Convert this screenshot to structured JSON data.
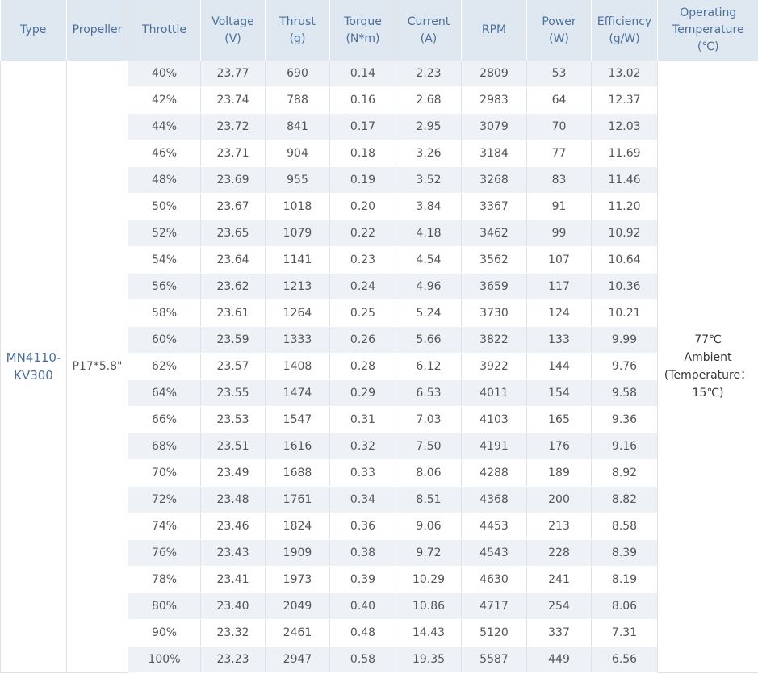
{
  "header": {
    "type": "Type",
    "propeller": "Propeller",
    "throttle": "Throttle",
    "voltage": {
      "name": "Voltage",
      "unit": "(V)"
    },
    "thrust": {
      "name": "Thrust",
      "unit": "(g)"
    },
    "torque": {
      "name": "Torque",
      "unit": "(N*m)"
    },
    "current": {
      "name": "Current",
      "unit": "(A)"
    },
    "rpm": "RPM",
    "power": {
      "name": "Power",
      "unit": "(W)"
    },
    "efficiency": {
      "name": "Efficiency",
      "unit": "(g/W)"
    },
    "temperature": {
      "line1": "Operating",
      "line2": "Temperature",
      "line3": "(℃)"
    }
  },
  "type": {
    "line1": "MN4110-",
    "line2": "KV300"
  },
  "propeller": "P17*5.8\"",
  "temperature_note": {
    "line1": "77℃",
    "line2": "Ambient",
    "line3": "(Temperature：",
    "line4": "15℃)"
  },
  "rows": [
    {
      "throttle": "40%",
      "voltage": "23.77",
      "thrust": "690",
      "torque": "0.14",
      "current": "2.23",
      "rpm": "2809",
      "power": "53",
      "efficiency": "13.02"
    },
    {
      "throttle": "42%",
      "voltage": "23.74",
      "thrust": "788",
      "torque": "0.16",
      "current": "2.68",
      "rpm": "2983",
      "power": "64",
      "efficiency": "12.37"
    },
    {
      "throttle": "44%",
      "voltage": "23.72",
      "thrust": "841",
      "torque": "0.17",
      "current": "2.95",
      "rpm": "3079",
      "power": "70",
      "efficiency": "12.03"
    },
    {
      "throttle": "46%",
      "voltage": "23.71",
      "thrust": "904",
      "torque": "0.18",
      "current": "3.26",
      "rpm": "3184",
      "power": "77",
      "efficiency": "11.69"
    },
    {
      "throttle": "48%",
      "voltage": "23.69",
      "thrust": "955",
      "torque": "0.19",
      "current": "3.52",
      "rpm": "3268",
      "power": "83",
      "efficiency": "11.46"
    },
    {
      "throttle": "50%",
      "voltage": "23.67",
      "thrust": "1018",
      "torque": "0.20",
      "current": "3.84",
      "rpm": "3367",
      "power": "91",
      "efficiency": "11.20"
    },
    {
      "throttle": "52%",
      "voltage": "23.65",
      "thrust": "1079",
      "torque": "0.22",
      "current": "4.18",
      "rpm": "3462",
      "power": "99",
      "efficiency": "10.92"
    },
    {
      "throttle": "54%",
      "voltage": "23.64",
      "thrust": "1141",
      "torque": "0.23",
      "current": "4.54",
      "rpm": "3562",
      "power": "107",
      "efficiency": "10.64"
    },
    {
      "throttle": "56%",
      "voltage": "23.62",
      "thrust": "1213",
      "torque": "0.24",
      "current": "4.96",
      "rpm": "3659",
      "power": "117",
      "efficiency": "10.36"
    },
    {
      "throttle": "58%",
      "voltage": "23.61",
      "thrust": "1264",
      "torque": "0.25",
      "current": "5.24",
      "rpm": "3730",
      "power": "124",
      "efficiency": "10.21"
    },
    {
      "throttle": "60%",
      "voltage": "23.59",
      "thrust": "1333",
      "torque": "0.26",
      "current": "5.66",
      "rpm": "3822",
      "power": "133",
      "efficiency": "9.99"
    },
    {
      "throttle": "62%",
      "voltage": "23.57",
      "thrust": "1408",
      "torque": "0.28",
      "current": "6.12",
      "rpm": "3922",
      "power": "144",
      "efficiency": "9.76"
    },
    {
      "throttle": "64%",
      "voltage": "23.55",
      "thrust": "1474",
      "torque": "0.29",
      "current": "6.53",
      "rpm": "4011",
      "power": "154",
      "efficiency": "9.58"
    },
    {
      "throttle": "66%",
      "voltage": "23.53",
      "thrust": "1547",
      "torque": "0.31",
      "current": "7.03",
      "rpm": "4103",
      "power": "165",
      "efficiency": "9.36"
    },
    {
      "throttle": "68%",
      "voltage": "23.51",
      "thrust": "1616",
      "torque": "0.32",
      "current": "7.50",
      "rpm": "4191",
      "power": "176",
      "efficiency": "9.16"
    },
    {
      "throttle": "70%",
      "voltage": "23.49",
      "thrust": "1688",
      "torque": "0.33",
      "current": "8.06",
      "rpm": "4288",
      "power": "189",
      "efficiency": "8.92"
    },
    {
      "throttle": "72%",
      "voltage": "23.48",
      "thrust": "1761",
      "torque": "0.34",
      "current": "8.51",
      "rpm": "4368",
      "power": "200",
      "efficiency": "8.82"
    },
    {
      "throttle": "74%",
      "voltage": "23.46",
      "thrust": "1824",
      "torque": "0.36",
      "current": "9.06",
      "rpm": "4453",
      "power": "213",
      "efficiency": "8.58"
    },
    {
      "throttle": "76%",
      "voltage": "23.43",
      "thrust": "1909",
      "torque": "0.38",
      "current": "9.72",
      "rpm": "4543",
      "power": "228",
      "efficiency": "8.39"
    },
    {
      "throttle": "78%",
      "voltage": "23.41",
      "thrust": "1973",
      "torque": "0.39",
      "current": "10.29",
      "rpm": "4630",
      "power": "241",
      "efficiency": "8.19"
    },
    {
      "throttle": "80%",
      "voltage": "23.40",
      "thrust": "2049",
      "torque": "0.40",
      "current": "10.86",
      "rpm": "4717",
      "power": "254",
      "efficiency": "8.06"
    },
    {
      "throttle": "90%",
      "voltage": "23.32",
      "thrust": "2461",
      "torque": "0.48",
      "current": "14.43",
      "rpm": "5120",
      "power": "337",
      "efficiency": "7.31"
    },
    {
      "throttle": "100%",
      "voltage": "23.23",
      "thrust": "2947",
      "torque": "0.58",
      "current": "19.35",
      "rpm": "5587",
      "power": "449",
      "efficiency": "6.56"
    }
  ]
}
